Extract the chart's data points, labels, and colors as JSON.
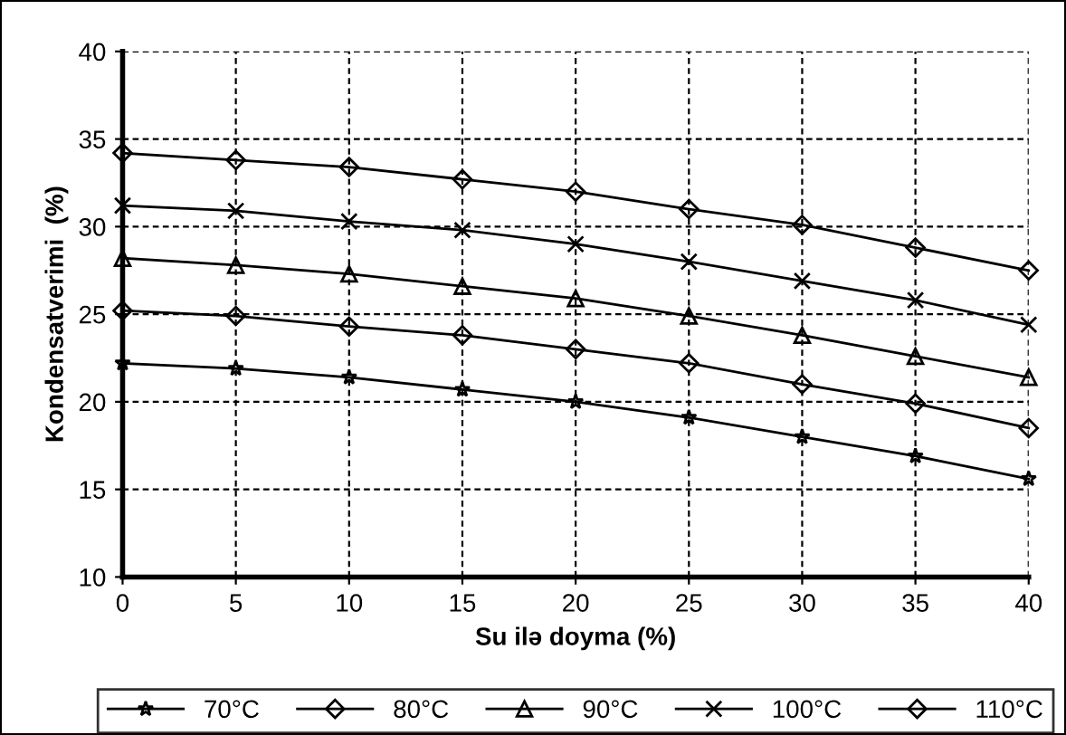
{
  "chart_data": {
    "type": "line",
    "xlabel": "Su ilə doyma (%)",
    "ylabel": "Kondensatverimi  (%)",
    "x": [
      0,
      5,
      10,
      15,
      20,
      25,
      30,
      35,
      40
    ],
    "xlim": [
      0,
      40
    ],
    "xticks": [
      0,
      5,
      10,
      15,
      20,
      25,
      30,
      35,
      40
    ],
    "ylim": [
      10,
      40
    ],
    "yticks": [
      10,
      15,
      20,
      25,
      30,
      35,
      40
    ],
    "grid": true,
    "legend": "bottom",
    "line_style": "solid",
    "series": [
      {
        "name": "70°C",
        "color": "#000000",
        "marker": "star",
        "values": [
          22.2,
          21.9,
          21.4,
          20.7,
          20.0,
          19.1,
          18.0,
          16.9,
          15.6
        ]
      },
      {
        "name": "80°C",
        "color": "#000000",
        "marker": "diamond",
        "values": [
          25.2,
          24.9,
          24.3,
          23.8,
          23.0,
          22.2,
          21.0,
          19.9,
          18.5
        ]
      },
      {
        "name": "90°C",
        "color": "#000000",
        "marker": "triangle",
        "values": [
          28.2,
          27.8,
          27.3,
          26.6,
          25.9,
          24.9,
          23.8,
          22.6,
          21.4
        ]
      },
      {
        "name": "100°C",
        "color": "#000000",
        "marker": "cross",
        "values": [
          31.2,
          30.9,
          30.3,
          29.8,
          29.0,
          28.0,
          26.9,
          25.8,
          24.4
        ]
      },
      {
        "name": "110°C",
        "color": "#000000",
        "marker": "diamond",
        "values": [
          34.2,
          33.8,
          33.4,
          32.7,
          32.0,
          31.0,
          30.1,
          28.8,
          27.5
        ]
      }
    ]
  }
}
